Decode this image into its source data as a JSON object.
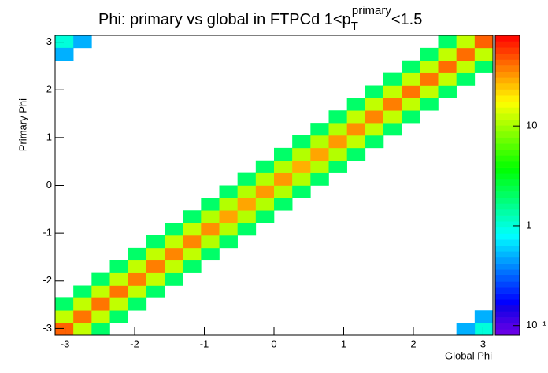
{
  "chart_data": {
    "type": "heatmap",
    "title": [
      "Phi: primary vs global in FTPCd 1<p",
      "T",
      "primary",
      "<1.5"
    ],
    "x_label": "Global Phi",
    "y_label": "Primary Phi",
    "xlim": [
      -3.1416,
      3.1416
    ],
    "ylim": [
      -3.1416,
      3.1416
    ],
    "xticks": [
      -3,
      -2,
      -1,
      0,
      1,
      2,
      3
    ],
    "yticks": [
      -3,
      -2,
      -1,
      0,
      1,
      2,
      3
    ],
    "nbins": 24,
    "zlim": [
      0.08,
      81
    ],
    "zlog": true,
    "zticks": [
      {
        "value": 0.1,
        "label": "10⁻¹"
      },
      1,
      10
    ],
    "cells": [
      [
        0,
        0,
        45
      ],
      [
        0,
        1,
        12
      ],
      [
        0,
        2,
        2
      ],
      [
        1,
        0,
        12
      ],
      [
        1,
        1,
        40
      ],
      [
        1,
        2,
        12
      ],
      [
        1,
        3,
        2
      ],
      [
        2,
        0,
        2
      ],
      [
        2,
        1,
        12
      ],
      [
        2,
        2,
        40
      ],
      [
        2,
        3,
        12
      ],
      [
        2,
        4,
        2
      ],
      [
        3,
        1,
        2
      ],
      [
        3,
        2,
        12
      ],
      [
        3,
        3,
        40
      ],
      [
        3,
        4,
        12
      ],
      [
        3,
        5,
        2
      ],
      [
        4,
        2,
        2
      ],
      [
        4,
        3,
        12
      ],
      [
        4,
        4,
        38
      ],
      [
        4,
        5,
        12
      ],
      [
        4,
        6,
        2
      ],
      [
        5,
        3,
        2
      ],
      [
        5,
        4,
        12
      ],
      [
        5,
        5,
        38
      ],
      [
        5,
        6,
        12
      ],
      [
        5,
        7,
        2
      ],
      [
        6,
        4,
        2
      ],
      [
        6,
        5,
        12
      ],
      [
        6,
        6,
        36
      ],
      [
        6,
        7,
        12
      ],
      [
        6,
        8,
        2
      ],
      [
        7,
        5,
        2
      ],
      [
        7,
        6,
        12
      ],
      [
        7,
        7,
        36
      ],
      [
        7,
        8,
        12
      ],
      [
        7,
        9,
        2
      ],
      [
        8,
        6,
        2
      ],
      [
        8,
        7,
        11
      ],
      [
        8,
        8,
        34
      ],
      [
        8,
        9,
        11
      ],
      [
        8,
        10,
        2
      ],
      [
        9,
        7,
        2
      ],
      [
        9,
        8,
        11
      ],
      [
        9,
        9,
        30
      ],
      [
        9,
        10,
        11
      ],
      [
        9,
        11,
        2
      ],
      [
        10,
        8,
        2
      ],
      [
        10,
        9,
        11
      ],
      [
        10,
        10,
        30
      ],
      [
        10,
        11,
        11
      ],
      [
        10,
        12,
        2
      ],
      [
        11,
        9,
        2
      ],
      [
        11,
        10,
        11
      ],
      [
        11,
        11,
        32
      ],
      [
        11,
        12,
        11
      ],
      [
        11,
        13,
        2
      ],
      [
        12,
        10,
        2
      ],
      [
        12,
        11,
        11
      ],
      [
        12,
        12,
        32
      ],
      [
        12,
        13,
        11
      ],
      [
        12,
        14,
        2
      ],
      [
        13,
        11,
        2
      ],
      [
        13,
        12,
        11
      ],
      [
        13,
        13,
        28
      ],
      [
        13,
        14,
        11
      ],
      [
        13,
        15,
        2
      ],
      [
        14,
        12,
        2
      ],
      [
        14,
        13,
        11
      ],
      [
        14,
        14,
        30
      ],
      [
        14,
        15,
        11
      ],
      [
        14,
        16,
        2
      ],
      [
        15,
        13,
        2
      ],
      [
        15,
        14,
        11
      ],
      [
        15,
        15,
        32
      ],
      [
        15,
        16,
        11
      ],
      [
        15,
        17,
        2
      ],
      [
        16,
        14,
        2
      ],
      [
        16,
        15,
        12
      ],
      [
        16,
        16,
        34
      ],
      [
        16,
        17,
        12
      ],
      [
        16,
        18,
        2
      ],
      [
        17,
        15,
        2
      ],
      [
        17,
        16,
        12
      ],
      [
        17,
        17,
        36
      ],
      [
        17,
        18,
        12
      ],
      [
        17,
        19,
        2
      ],
      [
        18,
        16,
        2
      ],
      [
        18,
        17,
        12
      ],
      [
        18,
        18,
        38
      ],
      [
        18,
        19,
        12
      ],
      [
        18,
        20,
        2
      ],
      [
        19,
        17,
        2
      ],
      [
        19,
        18,
        12
      ],
      [
        19,
        19,
        40
      ],
      [
        19,
        20,
        12
      ],
      [
        19,
        21,
        2
      ],
      [
        20,
        18,
        2
      ],
      [
        20,
        19,
        12
      ],
      [
        20,
        20,
        40
      ],
      [
        20,
        21,
        12
      ],
      [
        20,
        22,
        2
      ],
      [
        21,
        19,
        2
      ],
      [
        21,
        20,
        12
      ],
      [
        21,
        21,
        42
      ],
      [
        21,
        22,
        12
      ],
      [
        21,
        23,
        2
      ],
      [
        22,
        20,
        2
      ],
      [
        22,
        21,
        12
      ],
      [
        22,
        22,
        42
      ],
      [
        22,
        23,
        12
      ],
      [
        23,
        21,
        2
      ],
      [
        23,
        22,
        12
      ],
      [
        23,
        23,
        45
      ],
      [
        0,
        23,
        1
      ],
      [
        0,
        22,
        0.5
      ],
      [
        1,
        23,
        0.5
      ],
      [
        23,
        0,
        1
      ],
      [
        22,
        0,
        0.5
      ],
      [
        23,
        1,
        0.5
      ]
    ]
  }
}
